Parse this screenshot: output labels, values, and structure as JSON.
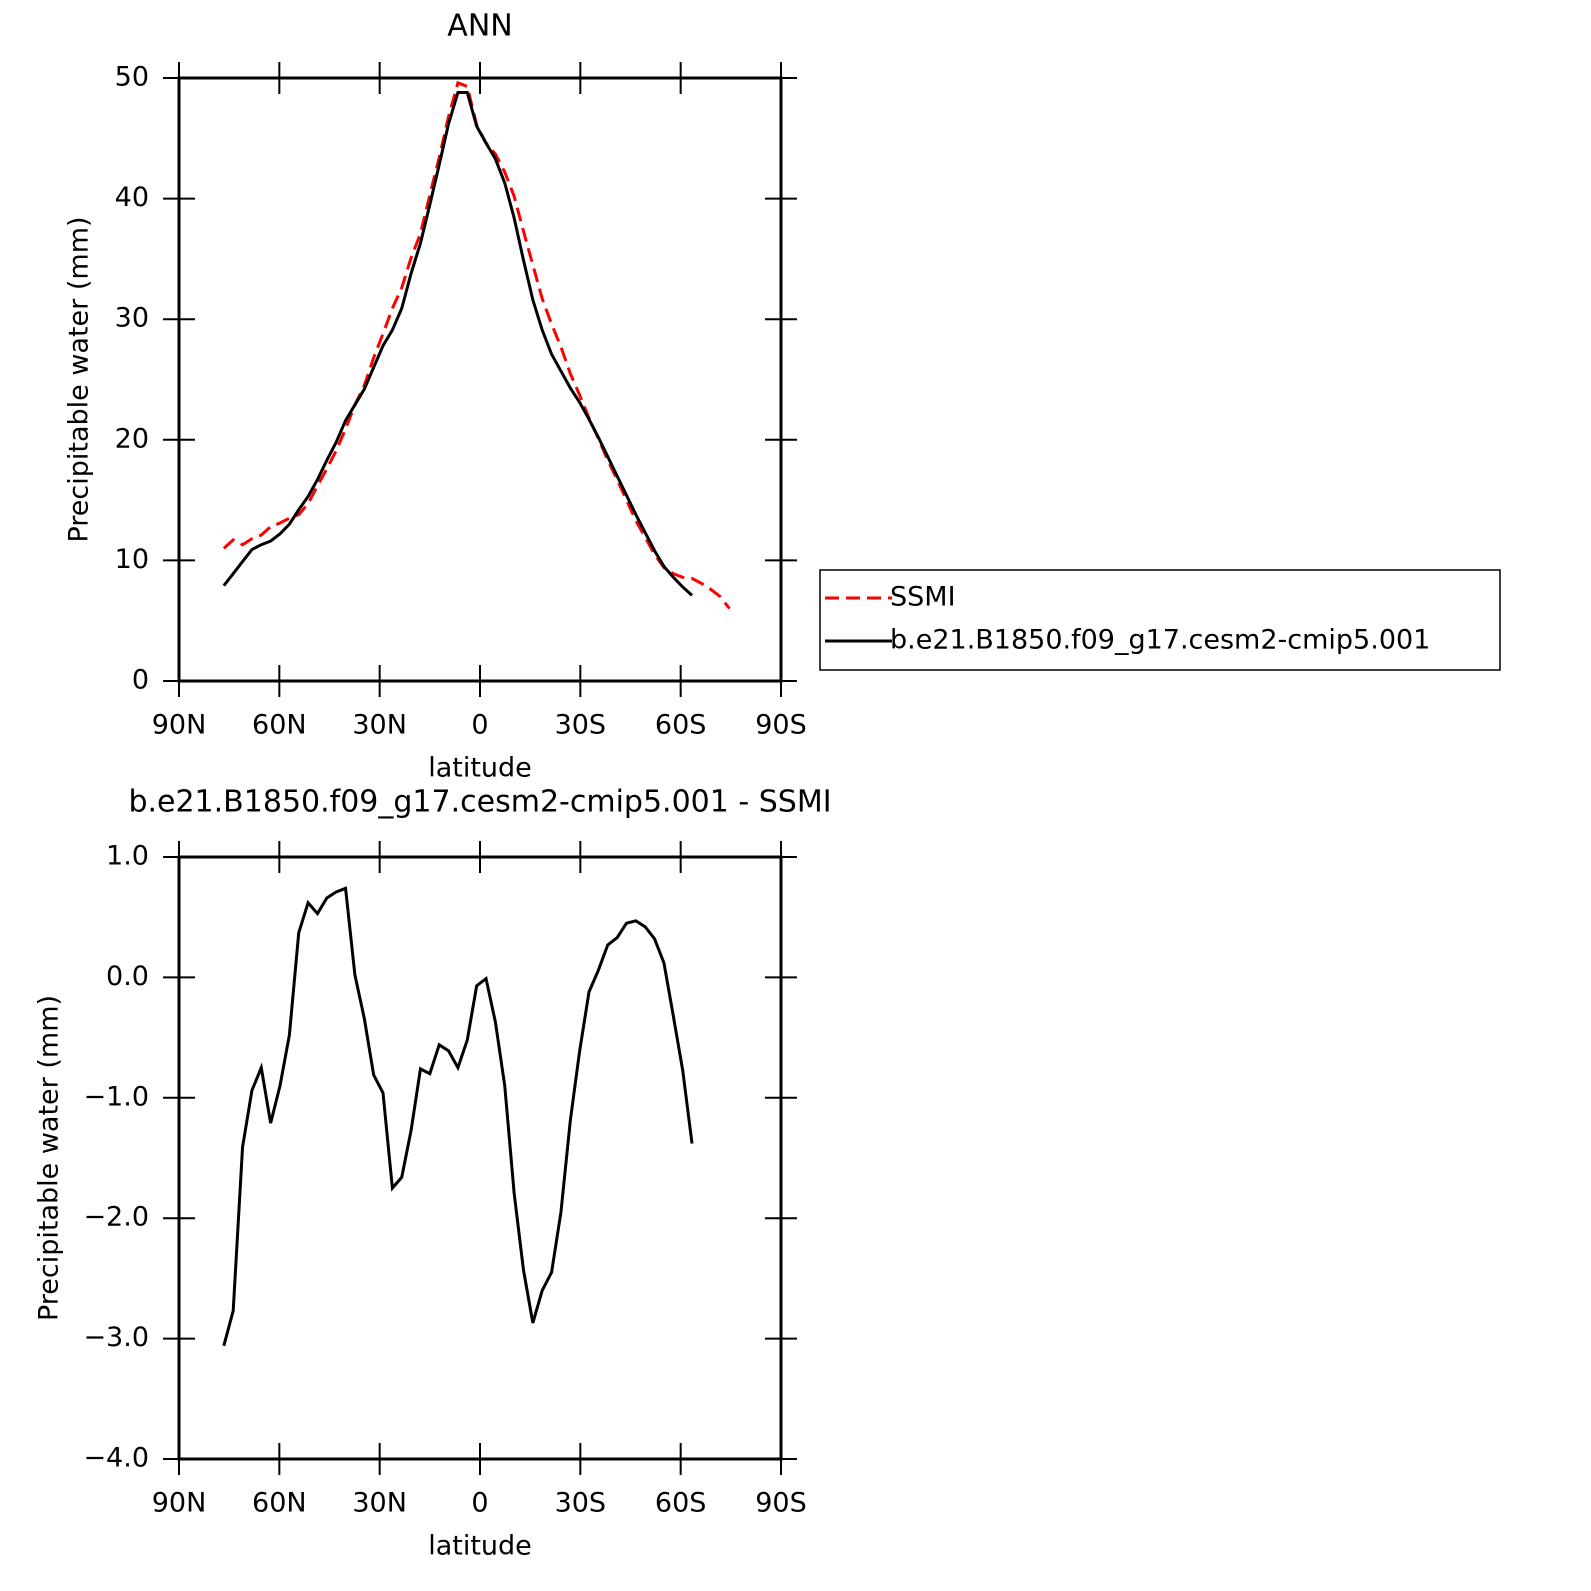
{
  "chart_data": [
    {
      "type": "line",
      "title": "ANN",
      "x_label": "latitude",
      "y_label": "Precipitable water (mm)",
      "x": [
        76.6,
        73.8,
        71.0,
        68.2,
        65.4,
        62.6,
        59.8,
        57.0,
        54.2,
        51.4,
        48.6,
        45.8,
        43.0,
        40.2,
        37.4,
        34.6,
        31.8,
        29.0,
        26.2,
        23.4,
        20.6,
        17.8,
        15.0,
        12.2,
        9.4,
        6.6,
        3.8,
        1.0,
        -1.8,
        -4.6,
        -7.4,
        -10.2,
        -13.0,
        -15.8,
        -18.6,
        -21.4,
        -24.2,
        -27.0,
        -29.8,
        -32.6,
        -35.4,
        -38.2,
        -41.0,
        -43.8,
        -46.6,
        -49.4,
        -52.2,
        -55.0,
        -57.8,
        -60.6,
        -63.4,
        -66.2,
        -69.0,
        -71.8,
        -74.6
      ],
      "series": [
        {
          "name": "SSMI",
          "color": "#ff0000",
          "style": "dashed",
          "values": [
            11.0,
            11.7,
            11.3,
            11.8,
            12.1,
            12.8,
            13.1,
            13.5,
            13.8,
            14.7,
            16.2,
            17.6,
            19.1,
            20.9,
            22.9,
            24.5,
            26.8,
            28.8,
            30.9,
            32.6,
            35.1,
            37.1,
            40.3,
            43.4,
            46.8,
            49.6,
            49.3,
            46.1,
            44.6,
            43.7,
            42.2,
            40.2,
            37.3,
            34.5,
            31.7,
            29.6,
            27.7,
            25.5,
            23.7,
            21.8,
            20.1,
            18.3,
            16.7,
            15.0,
            13.3,
            11.9,
            10.5,
            9.4,
            8.9,
            8.6,
            8.5,
            8.1,
            7.6,
            7.0,
            6.0
          ]
        },
        {
          "name": "b.e21.B1850.f09_g17.cesm2-cmip5.001",
          "color": "#000000",
          "style": "solid",
          "values": [
            7.9,
            8.9,
            9.9,
            10.9,
            11.3,
            11.6,
            12.2,
            13.0,
            14.2,
            15.3,
            16.7,
            18.3,
            19.8,
            21.6,
            22.9,
            24.2,
            26.0,
            27.8,
            29.1,
            30.9,
            33.8,
            36.3,
            39.5,
            42.8,
            46.2,
            48.8,
            48.8,
            46.0,
            44.6,
            43.3,
            41.3,
            38.4,
            34.9,
            31.6,
            29.1,
            27.1,
            25.7,
            24.3,
            23.1,
            21.7,
            20.2,
            18.6,
            17.0,
            15.4,
            13.8,
            12.3,
            10.8,
            9.5,
            8.6,
            7.8,
            7.1,
            null,
            null,
            null,
            null
          ]
        }
      ],
      "xlim": [
        90,
        -90
      ],
      "xticks": [
        {
          "value": 90,
          "label": "90N"
        },
        {
          "value": 60,
          "label": "60N"
        },
        {
          "value": 30,
          "label": "30N"
        },
        0,
        {
          "value": -30,
          "label": "30S"
        },
        {
          "value": -60,
          "label": "60S"
        },
        {
          "value": -90,
          "label": "90S"
        }
      ],
      "ylim": [
        0,
        50
      ],
      "yticks": [
        0,
        10,
        20,
        30,
        40,
        50
      ],
      "legend": "right"
    },
    {
      "type": "line",
      "title": "b.e21.B1850.f09_g17.cesm2-cmip5.001 - SSMI",
      "x_label": "latitude",
      "y_label": "Precipitable water (mm)",
      "x": [
        76.6,
        73.8,
        71.0,
        68.2,
        65.4,
        62.6,
        59.8,
        57.0,
        54.2,
        51.4,
        48.6,
        45.8,
        43.0,
        40.2,
        37.4,
        34.6,
        31.8,
        29.0,
        26.2,
        23.4,
        20.6,
        17.8,
        15.0,
        12.2,
        9.4,
        6.6,
        3.8,
        1.0,
        -1.8,
        -4.6,
        -7.4,
        -10.2,
        -13.0,
        -15.8,
        -18.6,
        -21.4,
        -24.2,
        -27.0,
        -29.8,
        -32.6,
        -35.4,
        -38.2,
        -41.0,
        -43.8,
        -46.6,
        -49.4,
        -52.2,
        -55.0,
        -57.8,
        -60.6,
        -63.4
      ],
      "values": [
        -3.06,
        -2.77,
        -1.41,
        -0.94,
        -0.75,
        -1.21,
        -0.9,
        -0.48,
        0.37,
        0.62,
        0.53,
        0.66,
        0.71,
        0.74,
        0.02,
        -0.34,
        -0.81,
        -0.96,
        -1.75,
        -1.66,
        -1.27,
        -0.76,
        -0.8,
        -0.56,
        -0.61,
        -0.75,
        -0.52,
        -0.07,
        -0.01,
        -0.37,
        -0.9,
        -1.79,
        -2.43,
        -2.87,
        -2.6,
        -2.45,
        -1.95,
        -1.19,
        -0.61,
        -0.12,
        0.06,
        0.27,
        0.33,
        0.45,
        0.47,
        0.42,
        0.32,
        0.12,
        -0.32,
        -0.77,
        -1.38
      ],
      "color": "#000000",
      "xlim": [
        90,
        -90
      ],
      "xticks": [
        {
          "value": 90,
          "label": "90N"
        },
        {
          "value": 60,
          "label": "60N"
        },
        {
          "value": 30,
          "label": "30N"
        },
        0,
        {
          "value": -30,
          "label": "30S"
        },
        {
          "value": -60,
          "label": "60S"
        },
        {
          "value": -90,
          "label": "90S"
        }
      ],
      "ylim": [
        -4,
        1
      ],
      "yticks": [
        {
          "value": -4,
          "label": "−4.0"
        },
        {
          "value": -3,
          "label": "−3.0"
        },
        {
          "value": -2,
          "label": "−2.0"
        },
        {
          "value": -1,
          "label": "−1.0"
        },
        {
          "value": 0,
          "label": "0.0"
        },
        {
          "value": 1,
          "label": "1.0"
        }
      ]
    }
  ]
}
